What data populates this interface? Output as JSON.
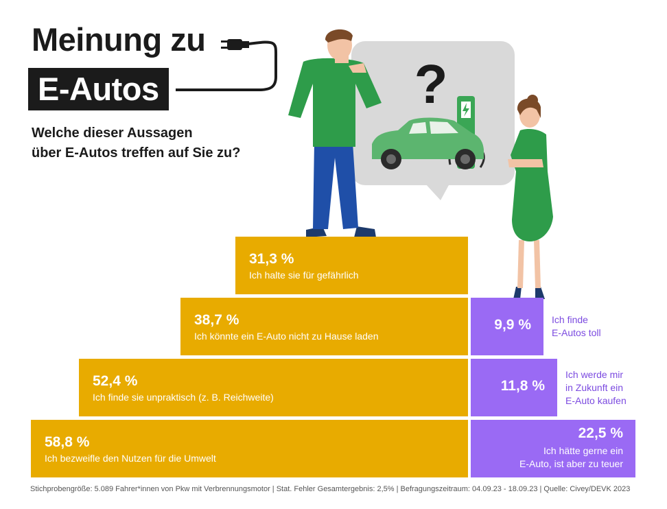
{
  "header": {
    "title_line1": "Meinung zu",
    "title_line2": "E-Autos",
    "question_line1": "Welche dieser Aussagen",
    "question_line2": "über E-Autos treffen auf Sie zu?"
  },
  "illustration": {
    "bubble_symbol": "?",
    "icons": [
      "plug-icon",
      "man-thinking-icon",
      "woman-icon",
      "electric-car-icon",
      "charging-station-icon",
      "lightning-icon"
    ]
  },
  "colors": {
    "negative": "#e8ab00",
    "positive": "#9a6af4",
    "positive_text": "#7b4ae0",
    "title_bg": "#1b1b1b"
  },
  "chart_data": {
    "type": "bar",
    "unit": "%",
    "series": [
      {
        "key": "negative",
        "values": [
          31.3,
          38.7,
          52.4,
          58.8
        ],
        "value_labels": [
          "31,3 %",
          "38,7 %",
          "52,4 %",
          "58,8 %"
        ],
        "categories": [
          "Ich halte sie für gefährlich",
          "Ich könnte ein E-Auto nicht zu Hause laden",
          "Ich finde sie unpraktisch (z. B. Reichweite)",
          "Ich bezweifle den Nutzen für die Umwelt"
        ]
      },
      {
        "key": "positive",
        "values": [
          9.9,
          11.8,
          22.5
        ],
        "value_labels": [
          "9,9 %",
          "11,8 %",
          "22,5 %"
        ],
        "categories": [
          [
            "Ich finde",
            "E-Autos toll"
          ],
          [
            "Ich werde mir",
            "in Zukunft ein",
            "E-Auto kaufen"
          ],
          [
            "Ich hätte gerne ein",
            "E-Auto, ist aber zu teuer"
          ]
        ]
      }
    ]
  },
  "footer": {
    "source": "Stichprobengröße: 5.089 Fahrer*innen von Pkw mit Verbrennungsmotor | Stat. Fehler Gesamtergebnis: 2,5% | Befragungszeitraum: 04.09.23 - 18.09.23 | Quelle: Civey/DEVK 2023"
  }
}
